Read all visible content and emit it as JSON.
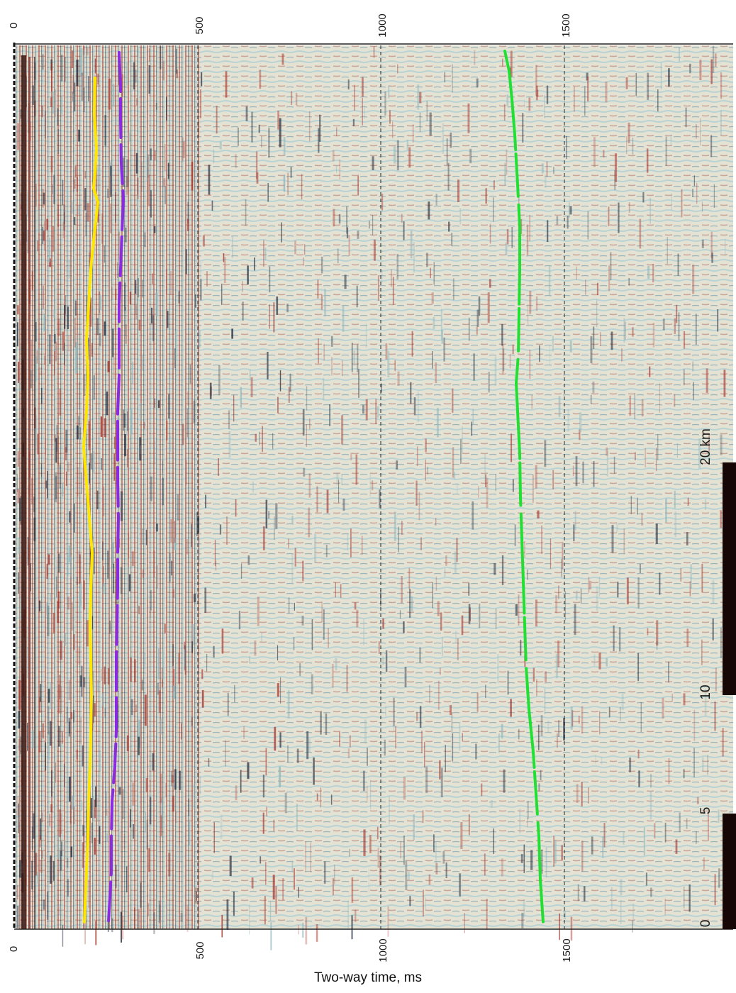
{
  "figure": {
    "axis_title": "Two-way time, ms",
    "time_ticks": [
      "0",
      "500",
      "1000",
      "1500"
    ],
    "scale_bar": {
      "labels": [
        "0",
        "5",
        "10",
        "20 km"
      ],
      "unit": "km"
    },
    "horizon_colors": {
      "yellow": "#ffe600",
      "purple": "#8a2be2",
      "green": "#22e033"
    },
    "seismic_colors": {
      "background": "#e7e4d6",
      "positive": "#a3312a",
      "negative": "#1e2a3c",
      "trough": "#b7d3d6"
    }
  }
}
